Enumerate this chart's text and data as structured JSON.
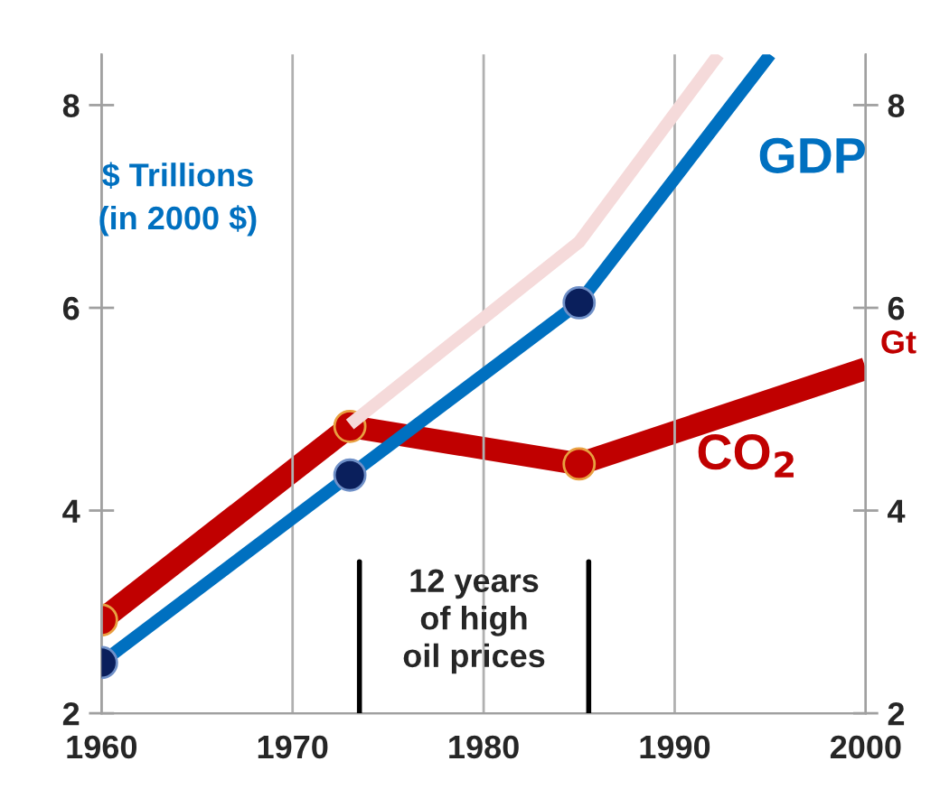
{
  "chart_data": {
    "type": "line",
    "ylabel": "$ Trillions\n(in 2000 $)",
    "y2label": "Gt",
    "series": [
      {
        "name": "GDP",
        "color": "#0070c0",
        "x": [
          1960,
          1973,
          1985,
          1995
        ],
        "values": [
          2.5,
          4.35,
          6.05,
          8.5
        ],
        "marker": "none"
      },
      {
        "color": "#f5dada",
        "x": [
          1973,
          1985,
          1992.3
        ],
        "values": [
          4.85,
          6.65,
          8.5
        ],
        "marker": "none"
      },
      {
        "name": "CO$_{2}$",
        "color": "#c00000",
        "x": [
          1960,
          1973,
          1985,
          2000
        ],
        "values": [
          2.92,
          4.83,
          4.46,
          5.4
        ],
        "marker": "none",
        "axis": "y2"
      },
      {
        "type": "scatter",
        "color": "#0a1f5c",
        "x": [
          1960,
          1973,
          1985
        ],
        "values": [
          2.5,
          4.35,
          6.05
        ],
        "marker": "circle"
      },
      {
        "type": "scatter",
        "color": "#c00000",
        "x": [
          1960,
          1973,
          1985
        ],
        "values": [
          2.92,
          4.83,
          4.46
        ],
        "marker": "circle",
        "axis": "y2"
      }
    ],
    "xlim": [
      1960,
      2000
    ],
    "xticks": [
      1960,
      1970,
      1980,
      1990,
      2000
    ],
    "ylim": [
      2,
      8.5
    ],
    "yticks": [
      2,
      4,
      6,
      8
    ],
    "y2lim": [
      2,
      8.5
    ],
    "y2ticks": [
      2,
      4,
      6,
      8
    ],
    "ref_lines": [
      {
        "axis": "x",
        "value": 1973.5,
        "color": "#000000"
      },
      {
        "axis": "x",
        "value": 1985.5,
        "color": "#000000"
      }
    ],
    "annotations": [
      "12 years\nof high\noil prices"
    ],
    "grid": "x",
    "legend": false
  }
}
